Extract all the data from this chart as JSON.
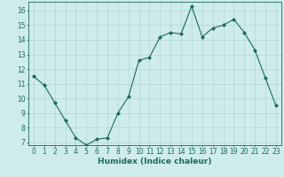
{
  "x": [
    0,
    1,
    2,
    3,
    4,
    5,
    6,
    7,
    8,
    9,
    10,
    11,
    12,
    13,
    14,
    15,
    16,
    17,
    18,
    19,
    20,
    21,
    22,
    23
  ],
  "y": [
    11.5,
    10.9,
    9.7,
    8.5,
    7.3,
    6.8,
    7.2,
    7.3,
    9.0,
    10.1,
    12.6,
    12.8,
    14.2,
    14.5,
    14.4,
    16.3,
    14.2,
    14.8,
    15.0,
    15.4,
    14.5,
    13.3,
    11.4,
    9.5
  ],
  "line_color": "#1a6b5a",
  "marker": "D",
  "marker_size": 2.0,
  "bg_color": "#ceecea",
  "grid_color": "#b0d8d4",
  "xlabel": "Humidex (Indice chaleur)",
  "ylim": [
    6.8,
    16.6
  ],
  "xlim": [
    -0.5,
    23.5
  ],
  "yticks": [
    7,
    8,
    9,
    10,
    11,
    12,
    13,
    14,
    15,
    16
  ],
  "xticks": [
    0,
    1,
    2,
    3,
    4,
    5,
    6,
    7,
    8,
    9,
    10,
    11,
    12,
    13,
    14,
    15,
    16,
    17,
    18,
    19,
    20,
    21,
    22,
    23
  ],
  "xlabel_fontsize": 6.5,
  "tick_fontsize": 5.5,
  "axis_color": "#1a6b5a",
  "linewidth": 0.8
}
